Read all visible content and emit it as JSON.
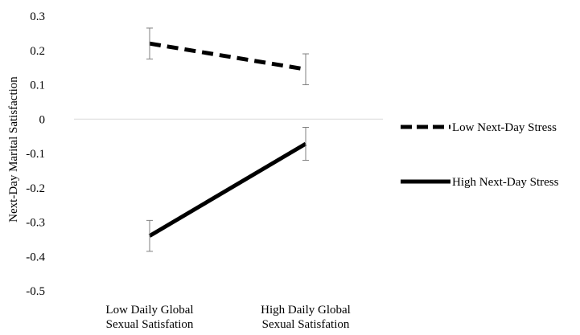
{
  "chart_data": {
    "type": "line",
    "title": "",
    "ylabel": "Next-Day Marital Satisfaction",
    "xlabel": "",
    "categories": [
      [
        "Low Daily Global",
        "Sexual Satisfation"
      ],
      [
        "High Daily Global",
        "Sexual Satisfation"
      ]
    ],
    "ylim": [
      -0.5,
      0.3
    ],
    "yticks": [
      0.3,
      0.2,
      0.1,
      0,
      -0.1,
      -0.2,
      -0.3,
      -0.4,
      -0.5
    ],
    "ytick_labels": [
      "0.3",
      "0.2",
      "0.1",
      "0",
      "-0.1",
      "-0.2",
      "-0.3",
      "-0.4",
      "-0.5"
    ],
    "grid": false,
    "legend_position": "right",
    "series": [
      {
        "name": "Low Next-Day Stress",
        "style": "dashed",
        "color": "#000000",
        "values": [
          0.22,
          0.145
        ],
        "error": [
          0.045,
          0.045
        ]
      },
      {
        "name": "High Next-Day Stress",
        "style": "solid",
        "color": "#000000",
        "values": [
          -0.34,
          -0.072
        ],
        "error": [
          0.045,
          0.048
        ]
      }
    ]
  }
}
